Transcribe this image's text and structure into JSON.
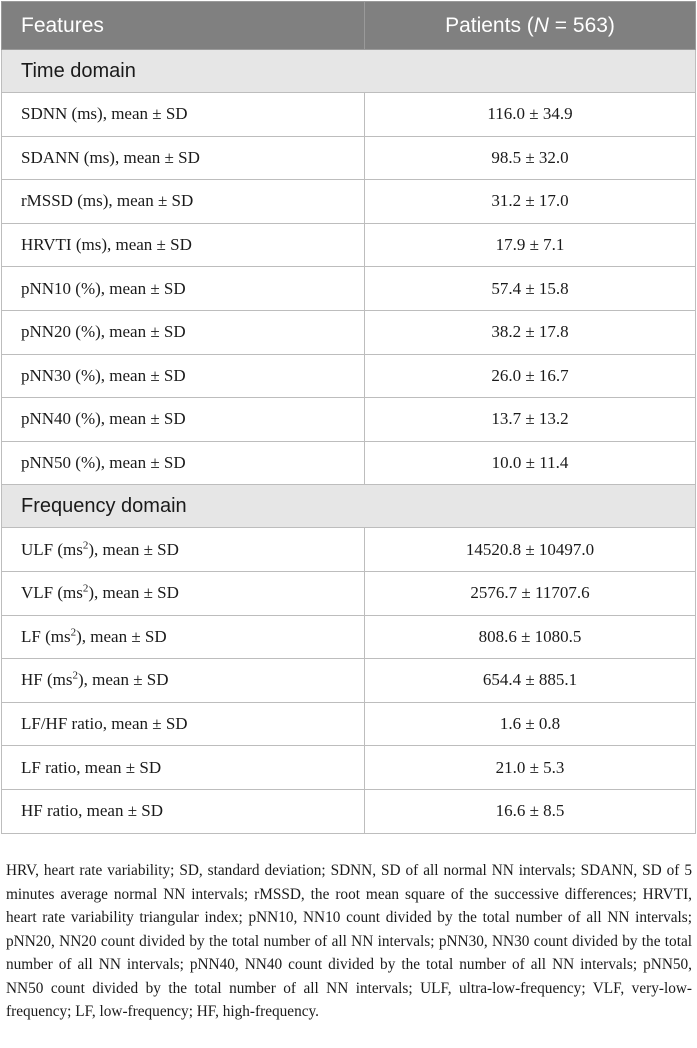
{
  "table": {
    "headers": [
      "Features",
      "Patients (N = 563)"
    ],
    "header_patients_prefix": "Patients (",
    "header_patients_n": "N",
    "header_patients_suffix": " = 563)",
    "sections": [
      {
        "title": "Time domain",
        "rows": [
          {
            "feature": "SDNN (ms), mean ± SD",
            "value": "116.0 ± 34.9"
          },
          {
            "feature": "SDANN (ms), mean ± SD",
            "value": "98.5 ± 32.0"
          },
          {
            "feature": "rMSSD (ms), mean ± SD",
            "value": "31.2 ± 17.0"
          },
          {
            "feature": "HRVTI (ms), mean ± SD",
            "value": "17.9 ± 7.1"
          },
          {
            "feature": "pNN10 (%), mean ± SD",
            "value": "57.4 ± 15.8"
          },
          {
            "feature": "pNN20 (%), mean ± SD",
            "value": "38.2 ± 17.8"
          },
          {
            "feature": "pNN30 (%), mean ± SD",
            "value": "26.0 ± 16.7"
          },
          {
            "feature": "pNN40 (%), mean ± SD",
            "value": "13.7 ± 13.2"
          },
          {
            "feature": "pNN50 (%), mean ± SD",
            "value": "10.0 ± 11.4"
          }
        ]
      },
      {
        "title": "Frequency domain",
        "rows": [
          {
            "feature_pre": "ULF (ms",
            "feature_sup": "2",
            "feature_post": "), mean ± SD",
            "value": "14520.8 ± 10497.0"
          },
          {
            "feature_pre": "VLF (ms",
            "feature_sup": "2",
            "feature_post": "), mean ± SD",
            "value": "2576.7 ± 11707.6"
          },
          {
            "feature_pre": "LF (ms",
            "feature_sup": "2",
            "feature_post": "), mean ± SD",
            "value": "808.6 ± 1080.5"
          },
          {
            "feature_pre": "HF (ms",
            "feature_sup": "2",
            "feature_post": "), mean ± SD",
            "value": "654.4 ± 885.1"
          },
          {
            "feature": "LF/HF ratio, mean ± SD",
            "value": "1.6 ± 0.8"
          },
          {
            "feature": "LF ratio, mean ± SD",
            "value": "21.0 ± 5.3"
          },
          {
            "feature": "HF ratio, mean ± SD",
            "value": "16.6 ± 8.5"
          }
        ]
      }
    ]
  },
  "footnote": "HRV, heart rate variability; SD, standard deviation; SDNN, SD of all normal NN intervals; SDANN, SD of 5 minutes average normal NN intervals; rMSSD, the root mean square of the successive differences; HRVTI, heart rate variability triangular index; pNN10, NN10 count divided by the total number of all NN intervals; pNN20, NN20 count divided by the total number of all NN intervals; pNN30, NN30 count divided by the total number of all NN intervals; pNN40, NN40 count divided by the total number of all NN intervals; pNN50, NN50 count divided by the total number of all NN intervals; ULF, ultra-low-frequency; VLF, very-low-frequency; LF, low-frequency; HF, high-frequency."
}
